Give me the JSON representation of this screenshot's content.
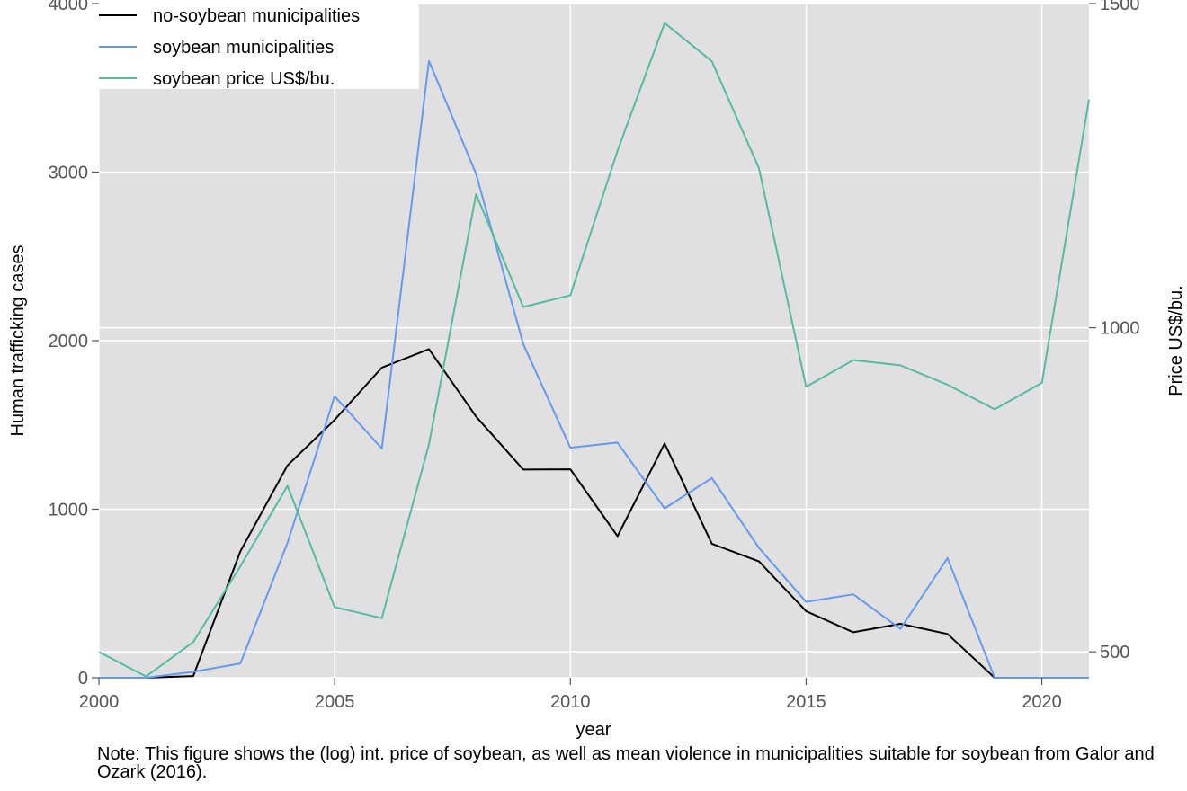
{
  "chart_data": {
    "type": "line",
    "title": "",
    "xlabel": "year",
    "ylabel": "Human trafficking cases",
    "y2label": "Price US$/bu.",
    "xlim": [
      2000,
      2021
    ],
    "ylim": [
      0,
      4000
    ],
    "y2lim": [
      460,
      1500
    ],
    "x_ticks": [
      "2000",
      "2005",
      "2010",
      "2015",
      "2020"
    ],
    "y_ticks": [
      "0",
      "1000",
      "2000",
      "3000",
      "4000"
    ],
    "y2_ticks": [
      "500",
      "1000",
      "1500"
    ],
    "legend_position": "top-left",
    "grid": true,
    "x": [
      2000,
      2001,
      2002,
      2003,
      2004,
      2005,
      2006,
      2007,
      2008,
      2009,
      2010,
      2011,
      2012,
      2013,
      2014,
      2015,
      2016,
      2017,
      2018,
      2019,
      2020,
      2021
    ],
    "series": [
      {
        "name": "no-soybean municipalities",
        "axis": "left",
        "color": "#000000",
        "values": [
          0,
          0,
          10,
          750,
          1260,
          1530,
          1840,
          1950,
          1550,
          1235,
          1237,
          840,
          1390,
          795,
          690,
          395,
          270,
          320,
          260,
          0,
          0,
          0
        ]
      },
      {
        "name": "soybean municipalities",
        "axis": "left",
        "color": "#6699ee",
        "values": [
          0,
          0,
          35,
          85,
          800,
          1670,
          1360,
          3660,
          2990,
          1980,
          1365,
          1395,
          1005,
          1185,
          770,
          450,
          495,
          290,
          710,
          0,
          0,
          0
        ]
      },
      {
        "name": "soybean price US$/bu.",
        "axis": "right",
        "color": "#55bb9f",
        "values": [
          500,
          462,
          515,
          632,
          756,
          569,
          552,
          820,
          1206,
          1032,
          1050,
          1273,
          1470,
          1411,
          1246,
          909,
          950,
          942,
          912,
          874,
          915,
          1352
        ]
      }
    ]
  },
  "note": "Note: This figure shows the (log) int. price of soybean, as well as mean violence in municipalities suitable for soybean from Galor and Ozark (2016)."
}
